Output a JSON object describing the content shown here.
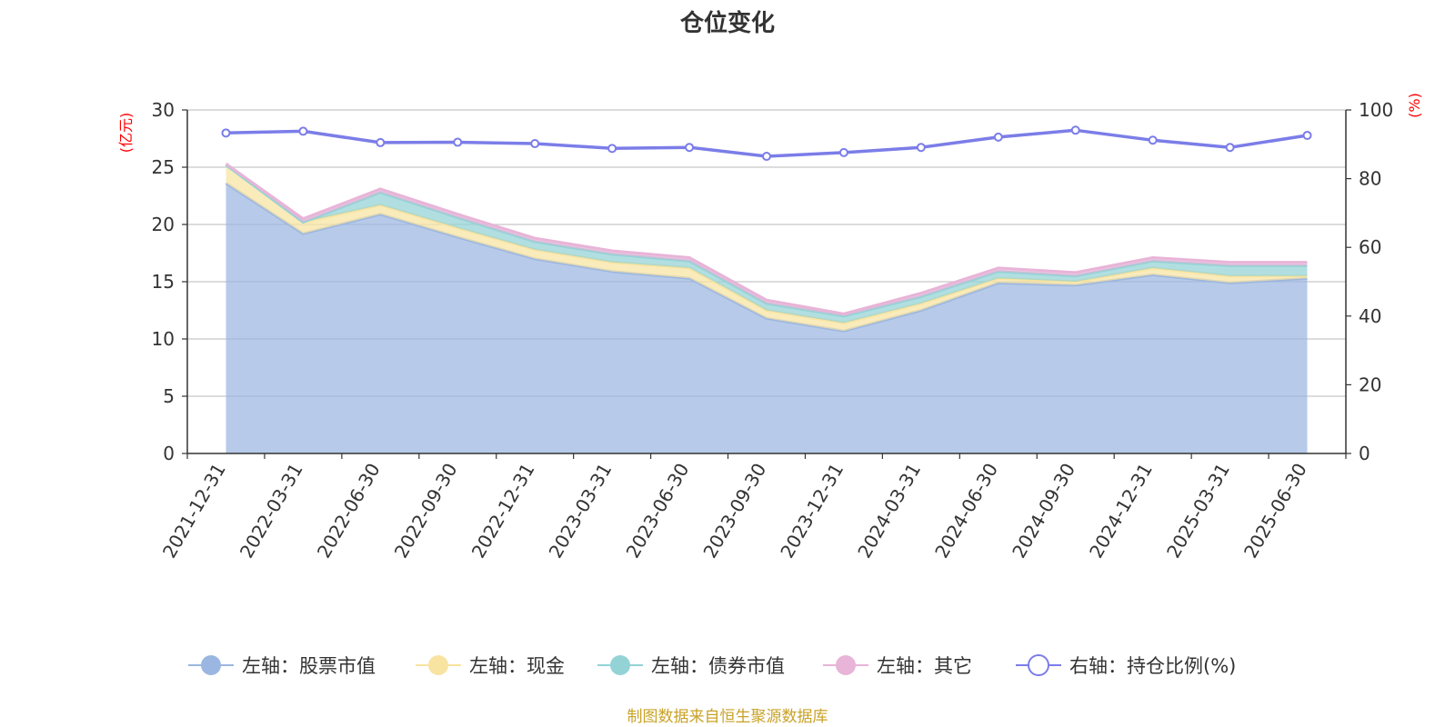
{
  "chart_data": {
    "type": "area",
    "title": "仓位变化",
    "source_note": "制图数据来自恒生聚源数据库",
    "left_axis": {
      "unit_label": "(亿元)",
      "min": 0,
      "max": 30,
      "ticks": [
        "0",
        "5",
        "10",
        "15",
        "20",
        "25",
        "30"
      ]
    },
    "right_axis": {
      "unit_label": "(%)",
      "min": 0,
      "max": 100,
      "ticks": [
        "0",
        "20",
        "40",
        "60",
        "80",
        "100"
      ]
    },
    "grid": true,
    "legend_position": "bottom",
    "categories": [
      "2021-12-31",
      "2022-03-31",
      "2022-06-30",
      "2022-09-30",
      "2022-12-31",
      "2023-03-31",
      "2023-06-30",
      "2023-09-30",
      "2023-12-31",
      "2024-03-31",
      "2024-06-30",
      "2024-09-30",
      "2024-12-31",
      "2025-03-31",
      "2025-06-30"
    ],
    "series": [
      {
        "name": "左轴：股票市值",
        "axis": "left",
        "kind": "stacked-area",
        "color": "#9bb6e0",
        "values": [
          23.6,
          19.2,
          20.9,
          18.9,
          17.0,
          15.9,
          15.3,
          11.8,
          10.7,
          12.5,
          14.9,
          14.7,
          15.6,
          14.9,
          15.3
        ]
      },
      {
        "name": "左轴：现金",
        "axis": "left",
        "kind": "stacked-area",
        "color": "#f8e3a1",
        "values": [
          1.6,
          1.0,
          0.8,
          0.8,
          0.8,
          0.8,
          0.9,
          0.7,
          0.7,
          0.6,
          0.4,
          0.3,
          0.6,
          0.6,
          0.2
        ]
      },
      {
        "name": "左轴：债券市值",
        "axis": "left",
        "kind": "stacked-area",
        "color": "#93d3d6",
        "values": [
          0.0,
          0.0,
          1.1,
          0.9,
          0.7,
          0.7,
          0.6,
          0.6,
          0.6,
          0.6,
          0.6,
          0.5,
          0.6,
          0.9,
          0.9
        ]
      },
      {
        "name": "左轴：其它",
        "axis": "left",
        "kind": "stacked-area",
        "color": "#e8b4d8",
        "values": [
          0.1,
          0.3,
          0.3,
          0.3,
          0.3,
          0.3,
          0.3,
          0.3,
          0.2,
          0.3,
          0.3,
          0.3,
          0.3,
          0.3,
          0.3
        ]
      },
      {
        "name": "右轴：持仓比例(%)",
        "axis": "right",
        "kind": "line",
        "color": "#7b7de8",
        "values": [
          93.3,
          93.8,
          90.5,
          90.6,
          90.2,
          88.8,
          89.1,
          86.5,
          87.6,
          89.1,
          92.1,
          94.1,
          91.2,
          89.1,
          92.6
        ]
      }
    ]
  }
}
